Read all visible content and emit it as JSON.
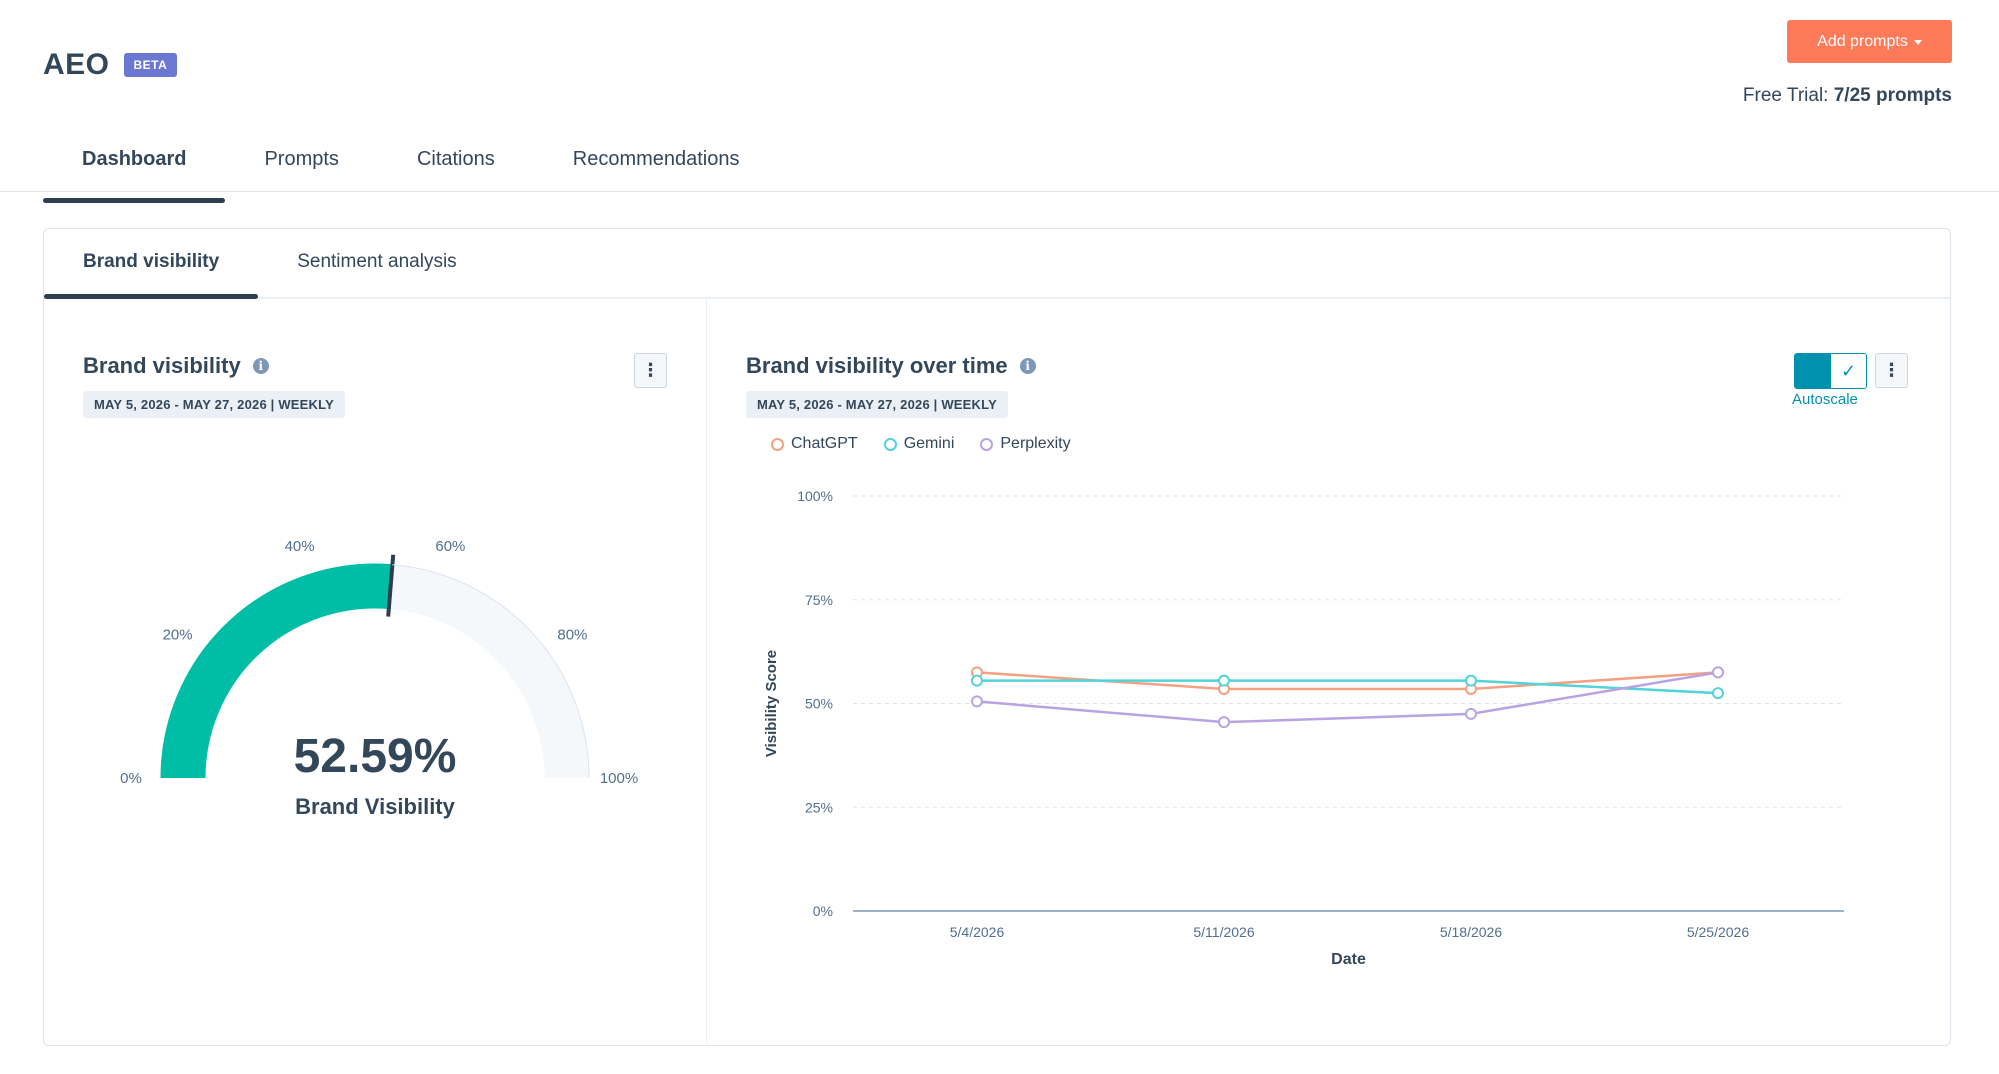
{
  "app": {
    "title": "AEO",
    "badge": "BETA"
  },
  "header": {
    "add_button_label": "Add prompts",
    "trial_prefix": "Free Trial:",
    "trial_value": "7/25 prompts"
  },
  "nav": {
    "tabs": [
      {
        "label": "Dashboard",
        "active": true
      },
      {
        "label": "Prompts"
      },
      {
        "label": "Citations"
      },
      {
        "label": "Recommendations"
      }
    ]
  },
  "subtabs": [
    {
      "label": "Brand visibility",
      "active": true
    },
    {
      "label": "Sentiment analysis"
    }
  ],
  "gauge_panel": {
    "title": "Brand visibility",
    "info_icon": "info-icon",
    "date_range": "MAY 5, 2026 - MAY 27, 2026 | WEEKLY",
    "value": 52.59,
    "value_text": "52.59%",
    "value_label": "Brand Visibility",
    "tick_labels": [
      "0%",
      "20%",
      "40%",
      "60%",
      "80%",
      "100%"
    ],
    "fill_color": "#00bda5",
    "track_color": "#f5f8fa"
  },
  "chart_panel": {
    "title": "Brand visibility over time",
    "info_icon": "info-icon",
    "date_range": "MAY 5, 2026 - MAY 27, 2026 | WEEKLY",
    "toggle_label": "Autoscale",
    "toggle_on": true
  },
  "chart_data": {
    "type": "line",
    "xlabel": "Date",
    "ylabel": "Visibility Score",
    "ylim": [
      0,
      100
    ],
    "yticks": [
      "0%",
      "25%",
      "50%",
      "75%",
      "100%"
    ],
    "categories": [
      "5/4/2026",
      "5/11/2026",
      "5/18/2026",
      "5/25/2026"
    ],
    "series": [
      {
        "name": "ChatGPT",
        "color": "#f2a282",
        "values": [
          57.5,
          53.5,
          53.5,
          57.5
        ]
      },
      {
        "name": "Gemini",
        "color": "#51d3d9",
        "values": [
          55.5,
          55.5,
          55.5,
          52.5
        ]
      },
      {
        "name": "Perplexity",
        "color": "#b9a3e3",
        "values": [
          50.5,
          45.5,
          47.5,
          57.5
        ]
      }
    ],
    "legend_position": "top-left",
    "grid": true
  }
}
